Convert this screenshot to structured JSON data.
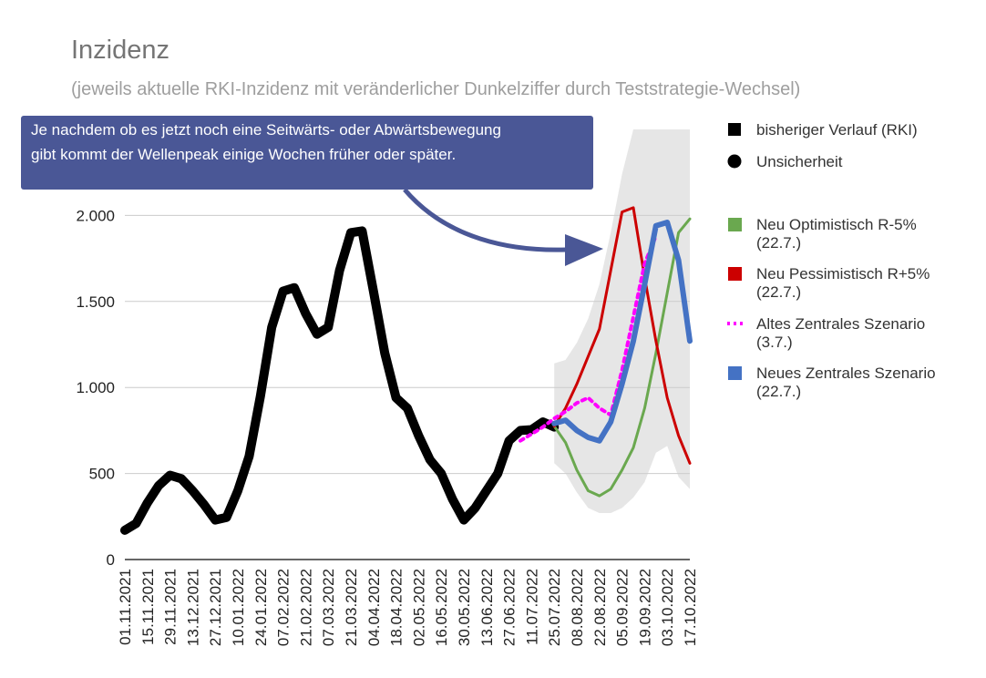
{
  "chart_data": {
    "type": "line",
    "title": "Inzidenz",
    "subtitle": "(jeweils aktuelle RKI-Inzidenz mit veränderlicher Dunkelziffer durch Teststrategie-Wechsel)",
    "xlabel": "",
    "ylabel": "",
    "ylim": [
      0,
      2500
    ],
    "yticks": [
      {
        "value": 0,
        "label": "0"
      },
      {
        "value": 500,
        "label": "500"
      },
      {
        "value": 1000,
        "label": "1.000"
      },
      {
        "value": 1500,
        "label": "1.500"
      },
      {
        "value": 2000,
        "label": "2.000"
      }
    ],
    "x_tick_labels": [
      "01.11.2021",
      "15.11.2021",
      "29.11.2021",
      "13.12.2021",
      "27.12.2021",
      "10.01.2022",
      "24.01.2022",
      "07.02.2022",
      "21.02.2022",
      "07.03.2022",
      "21.03.2022",
      "04.04.2022",
      "18.04.2022",
      "02.05.2022",
      "16.05.2022",
      "30.05.2022",
      "13.06.2022",
      "27.06.2022",
      "11.07.2022",
      "25.07.2022",
      "08.08.2022",
      "22.08.2022",
      "05.09.2022",
      "19.09.2022",
      "03.10.2022",
      "17.10.2022"
    ],
    "grid": true,
    "legend_position": "right",
    "series": [
      {
        "name": "bisheriger Verlauf (RKI)",
        "color": "#000000",
        "style": "solid-thick",
        "x_start": 0,
        "values": [
          170,
          210,
          330,
          430,
          490,
          470,
          400,
          320,
          230,
          245,
          400,
          600,
          950,
          1350,
          1560,
          1580,
          1430,
          1310,
          1350,
          1680,
          1900,
          1910,
          1560,
          1200,
          940,
          880,
          720,
          580,
          500,
          350,
          230,
          300,
          400,
          500,
          690,
          750,
          755,
          800,
          770
        ]
      },
      {
        "name": "Neu Optimistisch R-5%\n(22.7.)",
        "color": "#6aa84f",
        "style": "solid",
        "x_start": 38,
        "values": [
          775,
          680,
          520,
          400,
          370,
          410,
          520,
          650,
          880,
          1200,
          1550,
          1900,
          1980
        ]
      },
      {
        "name": "Neu Pessimistisch R+5%\n(22.7.)",
        "color": "#cc0000",
        "style": "solid",
        "x_start": 38,
        "values": [
          775,
          880,
          1020,
          1180,
          1340,
          1680,
          2020,
          2045,
          1640,
          1270,
          940,
          720,
          560
        ]
      },
      {
        "name": "Altes Zentrales Szenario\n(3.7.)",
        "color": "#ff00ff",
        "style": "dotted",
        "x_start": 35,
        "values": [
          690,
          730,
          770,
          820,
          860,
          910,
          940,
          880,
          840,
          1100,
          1410,
          1720,
          1880
        ]
      },
      {
        "name": "Neues Zentrales Szenario\n(22.7.)",
        "color": "#4472c4",
        "style": "solid-thick",
        "x_start": 38,
        "values": [
          790,
          810,
          750,
          710,
          690,
          800,
          1020,
          1270,
          1600,
          1940,
          1960,
          1740,
          1270
        ]
      }
    ],
    "uncertainty_band": {
      "name": "Unsicherheit",
      "color": "#e6e6e6",
      "x_start": 38,
      "upper": [
        1140,
        1160,
        1260,
        1400,
        1600,
        1900,
        2240,
        2500,
        2500,
        2500,
        2500,
        2500,
        2500
      ],
      "lower": [
        560,
        500,
        390,
        300,
        270,
        270,
        300,
        360,
        450,
        620,
        660,
        480,
        410
      ]
    },
    "annotation": {
      "line1": "Je nachdem ob es jetzt noch eine Seitwärts- oder Abwärtsbewegung",
      "line2": "gibt kommt der Wellenpeak einige Wochen früher oder später.",
      "box_color": "#4a5796",
      "arrow_color": "#4a5796"
    }
  }
}
